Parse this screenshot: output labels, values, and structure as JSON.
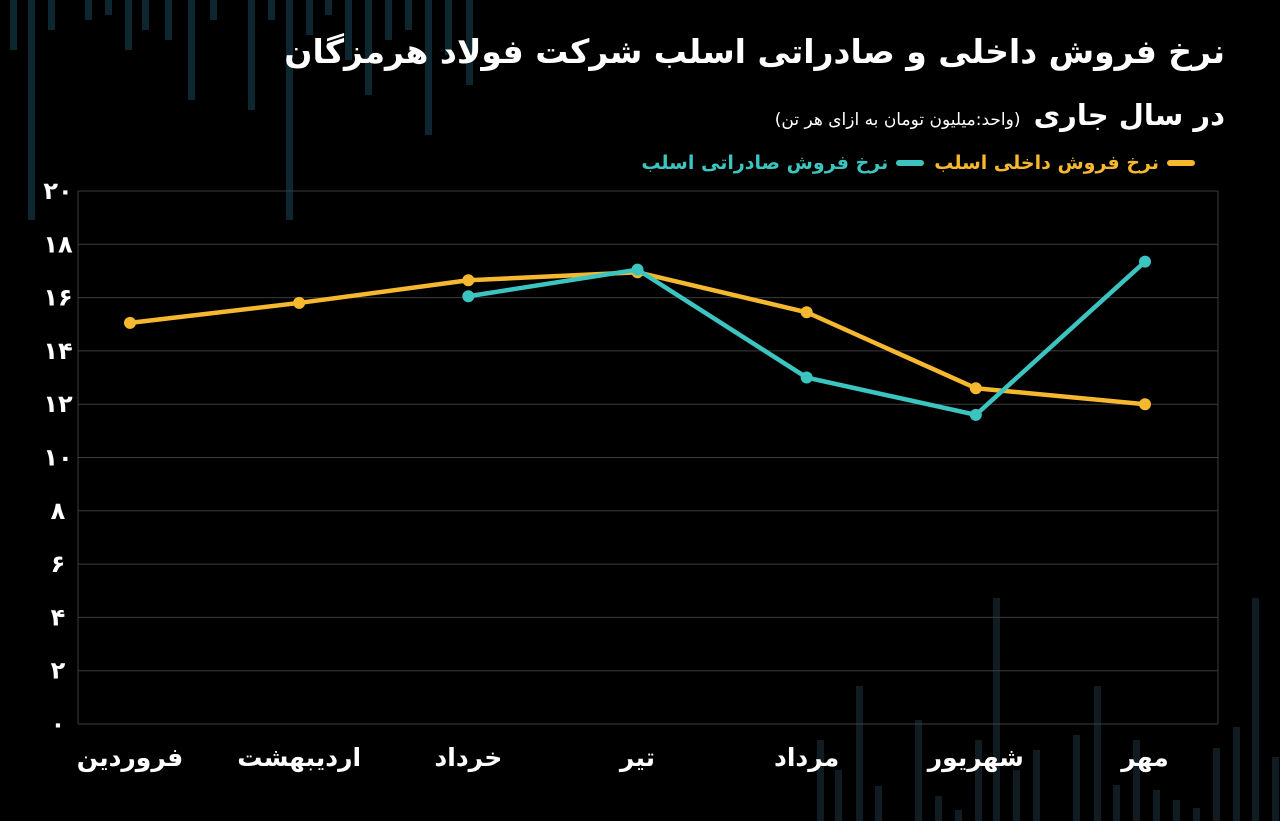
{
  "colors": {
    "background": "#000000",
    "grid": "#3c3c3c",
    "domestic": "#f5b82e",
    "export": "#3cc5c0",
    "text": "#ffffff"
  },
  "header": {
    "title": "نرخ فروش داخلی و صادراتی اسلب شرکت فولاد هرمزگان",
    "subtitle_main": "در سال جاری",
    "subtitle_unit": "(واحد:میلیون تومان به ازای هر تن)"
  },
  "chart_data": {
    "type": "line",
    "title": "نرخ فروش داخلی و صادراتی اسلب شرکت فولاد هرمزگان",
    "subtitle": "در سال جاری",
    "unit": "(واحد:میلیون تومان به ازای هر تن)",
    "categories": [
      "فروردین",
      "اردیبهشت",
      "خرداد",
      "تیر",
      "مرداد",
      "شهریور",
      "مهر"
    ],
    "series": [
      {
        "name": "نرخ فروش داخلی اسلب",
        "color": "#f5b82e",
        "values": [
          15.05,
          15.8,
          16.65,
          16.95,
          15.45,
          12.6,
          12.0
        ]
      },
      {
        "name": "نرخ فروش صادراتی اسلب",
        "color": "#3cc5c0",
        "values": [
          null,
          null,
          16.05,
          17.05,
          13.0,
          11.6,
          17.35
        ]
      }
    ],
    "yticks": [
      "۰",
      "۲",
      "۴",
      "۶",
      "۸",
      "۱۰",
      "۱۲",
      "۱۴",
      "۱۶",
      "۱۸",
      "۲۰"
    ],
    "ylim": [
      0,
      20
    ],
    "grid": true,
    "legend_position": "top-right"
  }
}
